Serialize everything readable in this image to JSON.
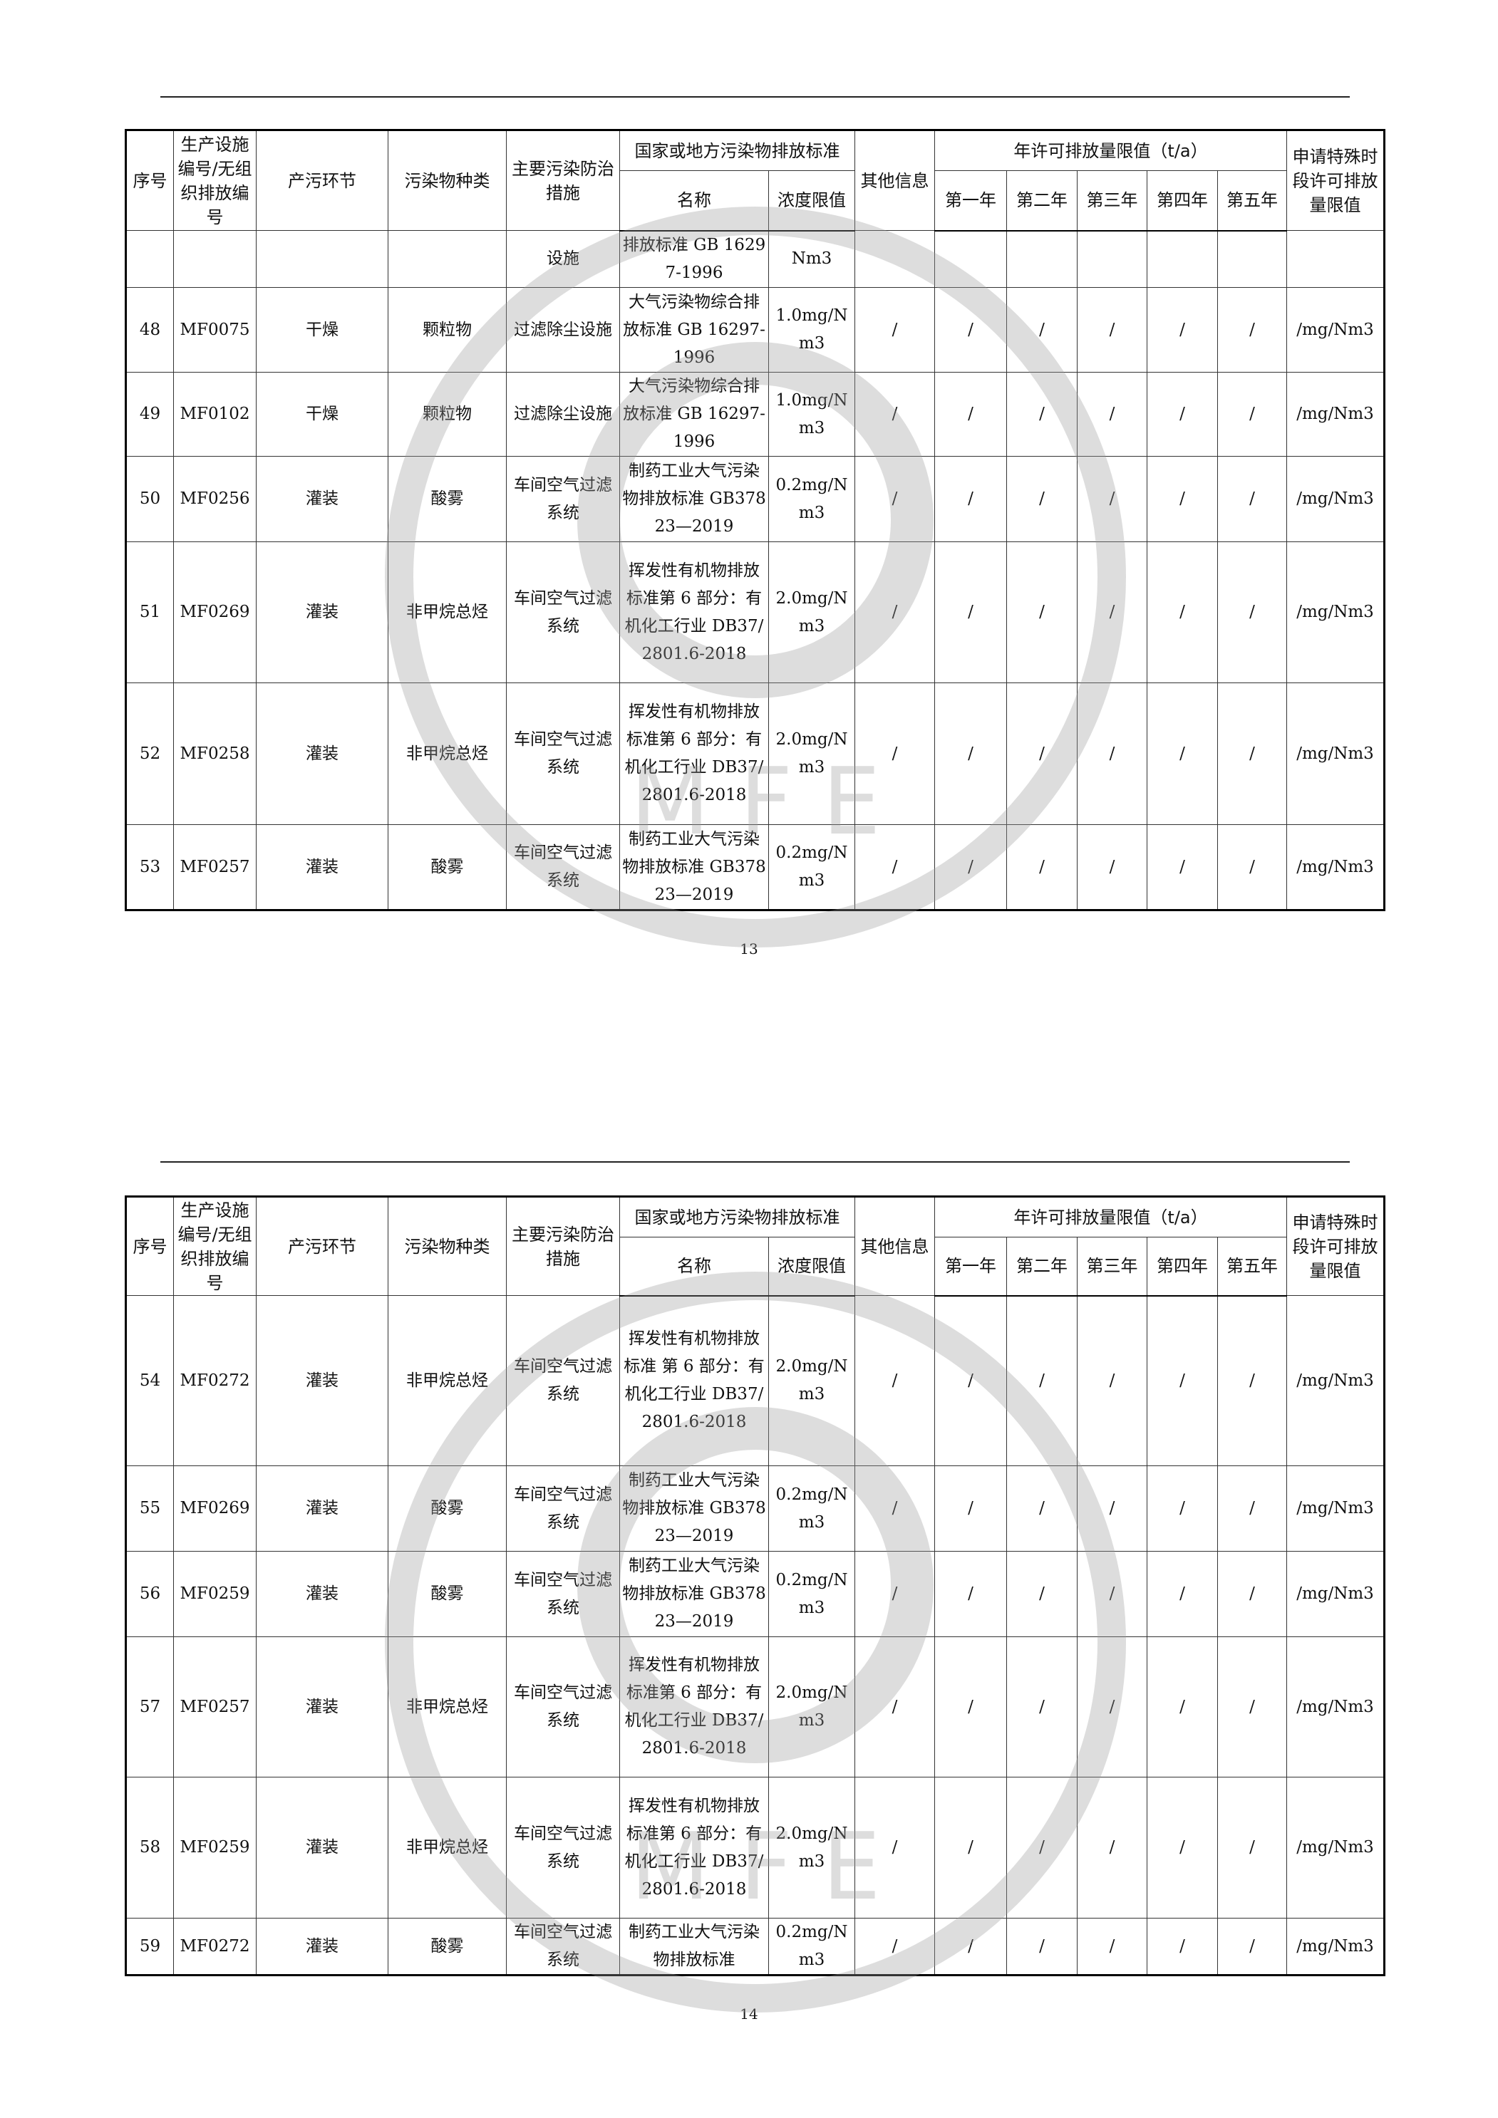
{
  "header": {
    "no": "序号",
    "id": "生产设施编号/无组织排放编号",
    "stage": "产污环节",
    "pollutant": "污染物种类",
    "measure": "主要污染防治措施",
    "standard": "国家或地方污染物排放标准",
    "std_name": "名称",
    "std_limit": "浓度限值",
    "other": "其他信息",
    "annual": "年许可排放量限值（t/a）",
    "years": [
      "第一年",
      "第二年",
      "第三年",
      "第四年",
      "第五年"
    ],
    "special": "申请特殊时段许可排放量限值"
  },
  "watermark": {
    "text": "M F E",
    "color": "#9a9a9a"
  },
  "pages": [
    {
      "page_number": "13",
      "rows": [
        {
          "no": "",
          "id": "",
          "stage": "",
          "pollutant": "",
          "measure": "设施",
          "std_name": "排放标准 GB 16297-1996",
          "limit": "Nm3",
          "other": "",
          "years": [
            "",
            "",
            "",
            "",
            ""
          ],
          "special": ""
        },
        {
          "no": "48",
          "id": "MF0075",
          "stage": "干燥",
          "pollutant": "颗粒物",
          "measure": "过滤除尘设施",
          "std_name": "大气污染物综合排放标准 GB 16297-1996",
          "limit": "1.0mg/Nm3",
          "other": "/",
          "years": [
            "/",
            "/",
            "/",
            "/",
            "/"
          ],
          "special": "/mg/Nm3"
        },
        {
          "no": "49",
          "id": "MF0102",
          "stage": "干燥",
          "pollutant": "颗粒物",
          "measure": "过滤除尘设施",
          "std_name": "大气污染物综合排放标准 GB 16297-1996",
          "limit": "1.0mg/Nm3",
          "other": "/",
          "years": [
            "/",
            "/",
            "/",
            "/",
            "/"
          ],
          "special": "/mg/Nm3"
        },
        {
          "no": "50",
          "id": "MF0256",
          "stage": "灌装",
          "pollutant": "酸雾",
          "measure": "车间空气过滤系统",
          "std_name": "制药工业大气污染物排放标准 GB37823—2019",
          "limit": "0.2mg/Nm3",
          "other": "/",
          "years": [
            "/",
            "/",
            "/",
            "/",
            "/"
          ],
          "special": "/mg/Nm3"
        },
        {
          "no": "51",
          "id": "MF0269",
          "stage": "灌装",
          "pollutant": "非甲烷总烃",
          "measure": "车间空气过滤系统",
          "std_name": "挥发性有机物排放标准第 6 部分：有机化工行业 DB37/2801.6-2018",
          "limit": "2.0mg/Nm3",
          "other": "/",
          "years": [
            "/",
            "/",
            "/",
            "/",
            "/"
          ],
          "special": "/mg/Nm3"
        },
        {
          "no": "52",
          "id": "MF0258",
          "stage": "灌装",
          "pollutant": "非甲烷总烃",
          "measure": "车间空气过滤系统",
          "std_name": "挥发性有机物排放标准第 6 部分：有机化工行业 DB37/2801.6-2018",
          "limit": "2.0mg/Nm3",
          "other": "/",
          "years": [
            "/",
            "/",
            "/",
            "/",
            "/"
          ],
          "special": "/mg/Nm3"
        },
        {
          "no": "53",
          "id": "MF0257",
          "stage": "灌装",
          "pollutant": "酸雾",
          "measure": "车间空气过滤系统",
          "std_name": "制药工业大气污染物排放标准 GB37823—2019",
          "limit": "0.2mg/Nm3",
          "other": "/",
          "years": [
            "/",
            "/",
            "/",
            "/",
            "/"
          ],
          "special": "/mg/Nm3"
        }
      ]
    },
    {
      "page_number": "14",
      "rows": [
        {
          "no": "54",
          "id": "MF0272",
          "stage": "灌装",
          "pollutant": "非甲烷总烃",
          "measure": "车间空气过滤系统",
          "std_name": "挥发性有机物排放标准 第 6 部分：有机化工行业 DB37/2801.6-2018",
          "limit": "2.0mg/Nm3",
          "other": "/",
          "years": [
            "/",
            "/",
            "/",
            "/",
            "/"
          ],
          "special": "/mg/Nm3"
        },
        {
          "no": "55",
          "id": "MF0269",
          "stage": "灌装",
          "pollutant": "酸雾",
          "measure": "车间空气过滤系统",
          "std_name": "制药工业大气污染物排放标准 GB37823—2019",
          "limit": "0.2mg/Nm3",
          "other": "/",
          "years": [
            "/",
            "/",
            "/",
            "/",
            "/"
          ],
          "special": "/mg/Nm3"
        },
        {
          "no": "56",
          "id": "MF0259",
          "stage": "灌装",
          "pollutant": "酸雾",
          "measure": "车间空气过滤系统",
          "std_name": "制药工业大气污染物排放标准 GB37823—2019",
          "limit": "0.2mg/Nm3",
          "other": "/",
          "years": [
            "/",
            "/",
            "/",
            "/",
            "/"
          ],
          "special": "/mg/Nm3"
        },
        {
          "no": "57",
          "id": "MF0257",
          "stage": "灌装",
          "pollutant": "非甲烷总烃",
          "measure": "车间空气过滤系统",
          "std_name": "挥发性有机物排放标准第 6 部分：有机化工行业 DB37/2801.6-2018",
          "limit": "2.0mg/Nm3",
          "other": "/",
          "years": [
            "/",
            "/",
            "/",
            "/",
            "/"
          ],
          "special": "/mg/Nm3"
        },
        {
          "no": "58",
          "id": "MF0259",
          "stage": "灌装",
          "pollutant": "非甲烷总烃",
          "measure": "车间空气过滤系统",
          "std_name": "挥发性有机物排放标准第 6 部分：有机化工行业 DB37/2801.6-2018",
          "limit": "2.0mg/Nm3",
          "other": "/",
          "years": [
            "/",
            "/",
            "/",
            "/",
            "/"
          ],
          "special": "/mg/Nm3"
        },
        {
          "no": "59",
          "id": "MF0272",
          "stage": "灌装",
          "pollutant": "酸雾",
          "measure": "车间空气过滤系统",
          "std_name": "制药工业大气污染物排放标准",
          "limit": "0.2mg/Nm3",
          "other": "/",
          "years": [
            "/",
            "/",
            "/",
            "/",
            "/"
          ],
          "special": "/mg/Nm3"
        }
      ]
    }
  ]
}
